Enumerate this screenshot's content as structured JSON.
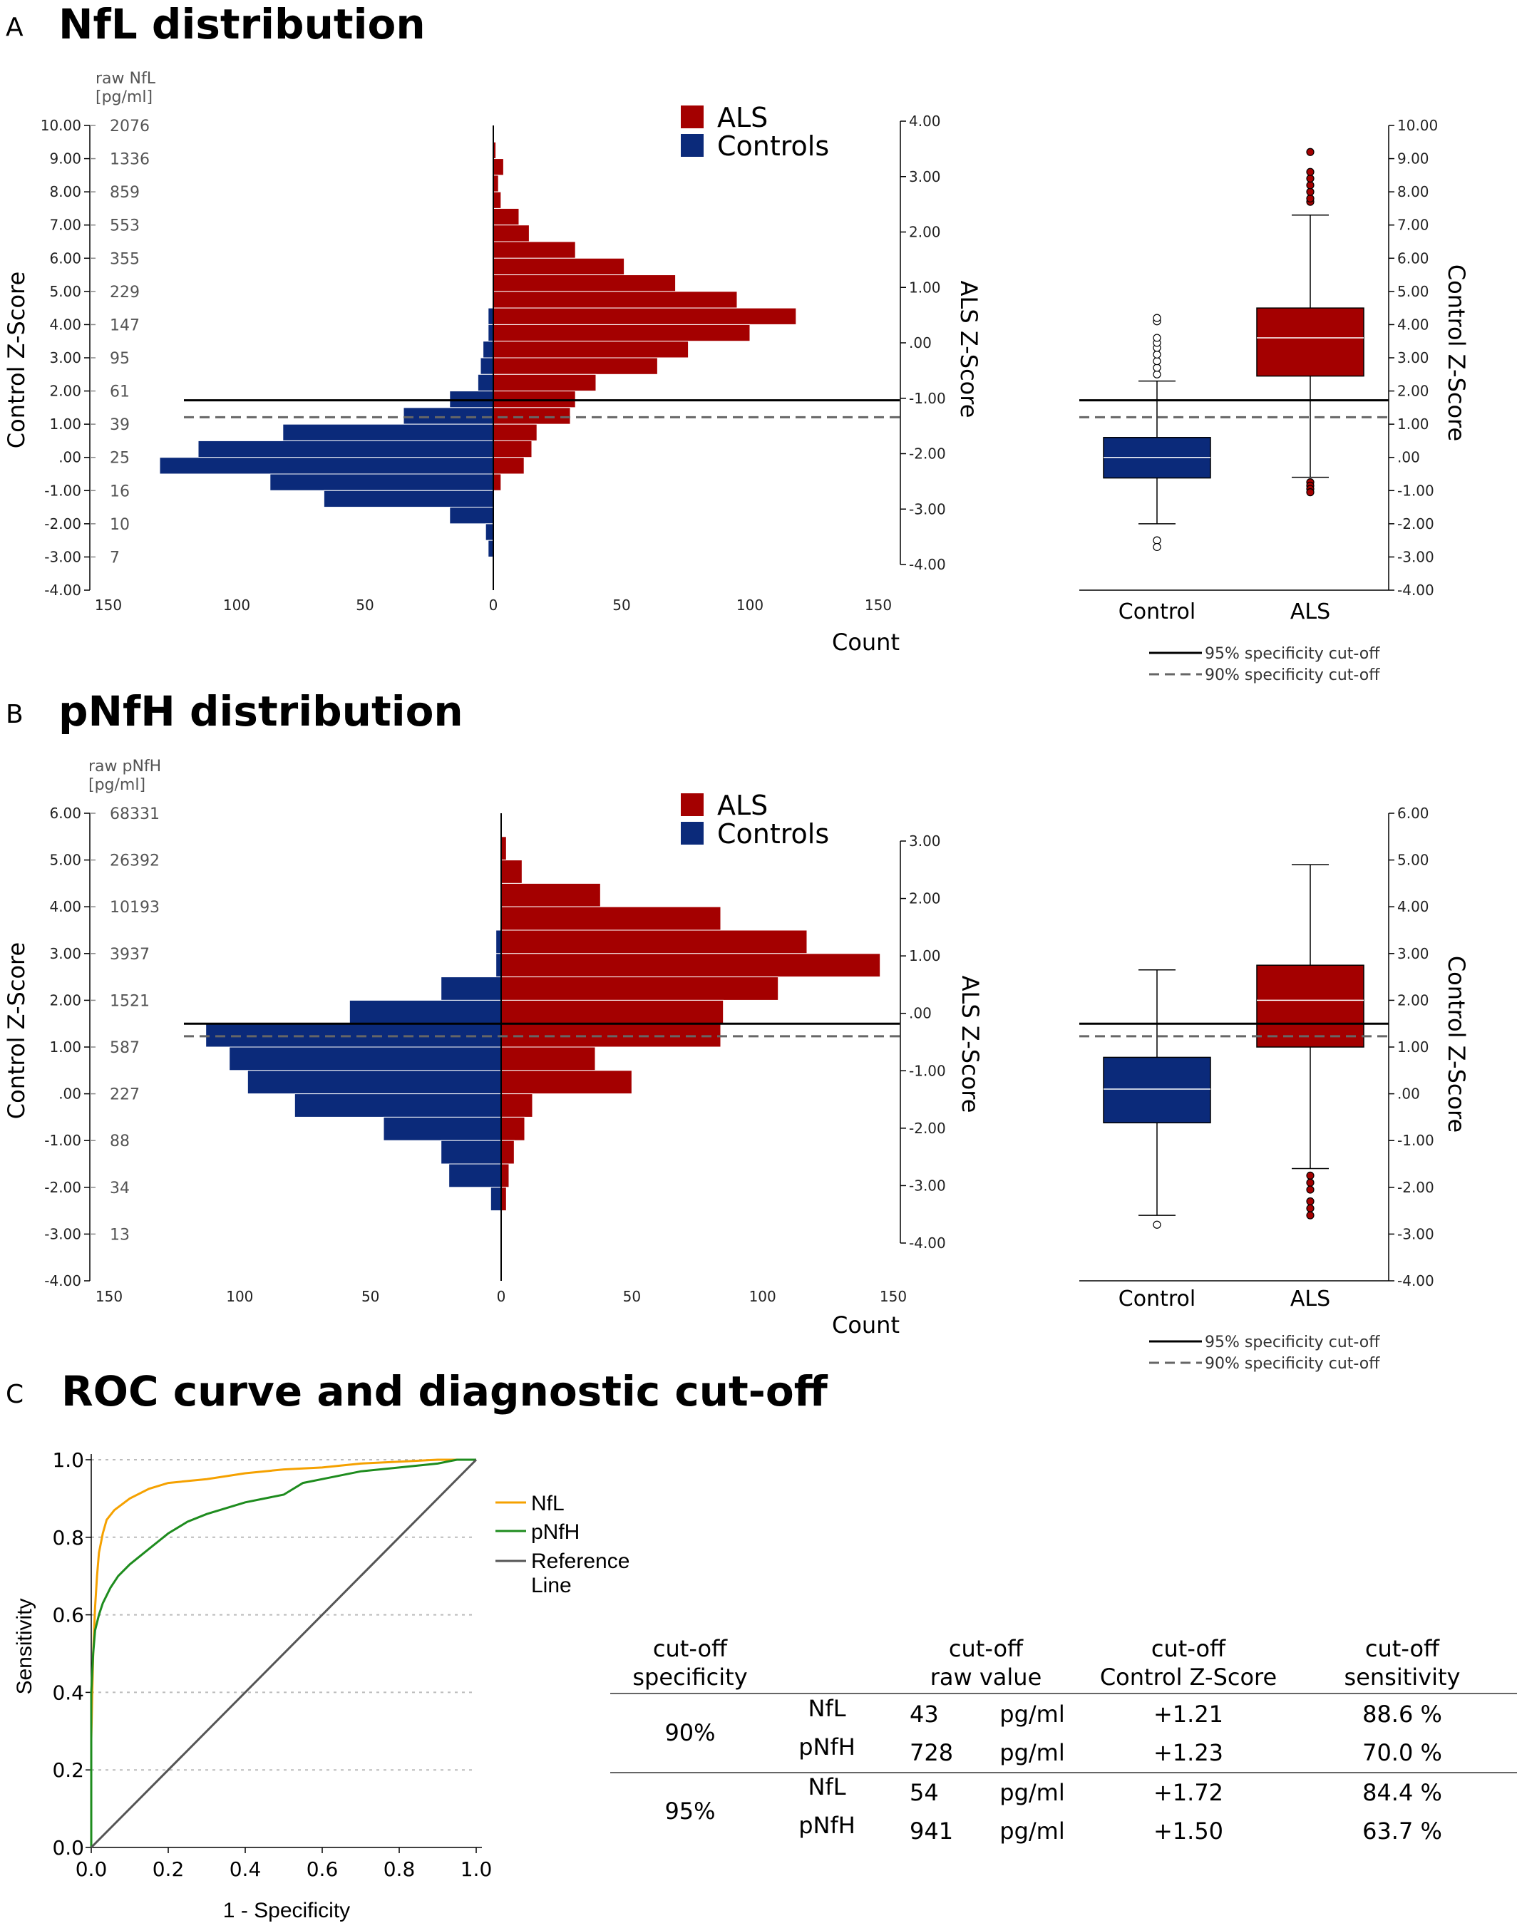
{
  "panels": {
    "a_letter": "A",
    "a_title": "NfL distribution",
    "b_letter": "B",
    "b_title": "pNfH distribution",
    "c_letter": "C",
    "c_title": "ROC curve and diagnostic cut-off"
  },
  "colors": {
    "als": "#a40000",
    "controls": "#0b2a7a",
    "nfl_roc": "#f5a100",
    "pnfh_roc": "#1e8c1e",
    "reference": "#555555"
  },
  "chart_data": [
    {
      "id": "A_histogram",
      "type": "bar",
      "orientation": "horizontal-mirrored",
      "raw_axis_title": [
        "raw NfL",
        "[pg/ml]"
      ],
      "ylabel_left": "Control Z-Score",
      "ylabel_right": "ALS Z-Score",
      "xlabel": "Count",
      "legend": [
        "ALS",
        "Controls"
      ],
      "ylim": [
        -4,
        10
      ],
      "y_ticks": [
        "10.00",
        "9.00",
        "8.00",
        "7.00",
        "6.00",
        "5.00",
        "4.00",
        "3.00",
        "2.00",
        "1.00",
        ".00",
        "-1.00",
        "-2.00",
        "-3.00",
        "-4.00"
      ],
      "raw_ticks": [
        "2076",
        "1336",
        "859",
        "553",
        "355",
        "229",
        "147",
        "95",
        "61",
        "39",
        "25",
        "16",
        "10",
        "7"
      ],
      "right_ticks": [
        "4.00",
        "3.00",
        "2.00",
        "1.00",
        ".00",
        "-1.00",
        "-2.00",
        "-3.00",
        "-4.00"
      ],
      "x_ticks": [
        "150",
        "100",
        "50",
        "0",
        "50",
        "100",
        "150"
      ],
      "xlim": 150,
      "bin_width": 0.5,
      "bins_y_center": [
        9.25,
        8.75,
        8.25,
        7.75,
        7.25,
        6.75,
        6.25,
        5.75,
        5.25,
        4.75,
        4.25,
        3.75,
        3.25,
        2.75,
        2.25,
        1.75,
        1.25,
        0.75,
        0.25,
        -0.25,
        -0.75,
        -1.25,
        -1.75,
        -2.25,
        -2.75
      ],
      "series": [
        {
          "name": "ALS",
          "values": [
            1,
            4,
            2,
            3,
            10,
            14,
            32,
            51,
            71,
            95,
            118,
            100,
            76,
            64,
            40,
            32,
            30,
            17,
            15,
            12,
            3,
            0,
            0,
            0,
            0
          ]
        },
        {
          "name": "Controls",
          "values": [
            0,
            0,
            0,
            0,
            0,
            0,
            0,
            0,
            0,
            0,
            2,
            2,
            4,
            5,
            6,
            17,
            35,
            82,
            115,
            130,
            87,
            66,
            17,
            3,
            2
          ]
        }
      ],
      "cutoff_95_z": 1.72,
      "cutoff_90_z": 1.21
    },
    {
      "id": "A_boxplot",
      "type": "box",
      "categories": [
        "Control",
        "ALS"
      ],
      "ylabel": "Control Z-Score",
      "ylim": [
        -4,
        10
      ],
      "y_ticks": [
        "10.00",
        "9.00",
        "8.00",
        "7.00",
        "6.00",
        "5.00",
        "4.00",
        "3.00",
        "2.00",
        "1.00",
        ".00",
        "-1.00",
        "-2.00",
        "-3.00",
        "-4.00"
      ],
      "boxes": [
        {
          "category": "Control",
          "whisker_low": -2.0,
          "q1": -0.62,
          "median": 0.0,
          "q3": 0.6,
          "whisker_high": 2.3,
          "outliers": [
            2.5,
            2.7,
            2.9,
            3.1,
            3.3,
            3.45,
            3.6,
            4.1,
            4.2,
            -2.5,
            -2.7
          ]
        },
        {
          "category": "ALS",
          "whisker_low": -0.6,
          "q1": 2.45,
          "median": 3.6,
          "q3": 4.5,
          "whisker_high": 7.3,
          "outliers": [
            7.7,
            7.8,
            8.0,
            8.2,
            8.4,
            8.6,
            9.2,
            -0.75,
            -0.85,
            -0.95,
            -1.05
          ]
        }
      ],
      "cutoff_95_z": 1.72,
      "cutoff_90_z": 1.21,
      "cutoff_legend": [
        "95% specificity cut-off",
        "90% specificity cut-off"
      ]
    },
    {
      "id": "B_histogram",
      "type": "bar",
      "orientation": "horizontal-mirrored",
      "raw_axis_title": [
        "raw pNfH",
        "[pg/ml]"
      ],
      "ylabel_left": "Control Z-Score",
      "ylabel_right": "ALS Z-Score",
      "xlabel": "Count",
      "legend": [
        "ALS",
        "Controls"
      ],
      "ylim": [
        -4,
        6
      ],
      "y_ticks": [
        "6.00",
        "5.00",
        "4.00",
        "3.00",
        "2.00",
        "1.00",
        ".00",
        "-1.00",
        "-2.00",
        "-3.00",
        "-4.00"
      ],
      "raw_ticks": [
        "68331",
        "26392",
        "10193",
        "3937",
        "1521",
        "587",
        "227",
        "88",
        "34",
        "13"
      ],
      "right_ticks": [
        "3.00",
        "2.00",
        "1.00",
        ".00",
        "-1.00",
        "-2.00",
        "-3.00",
        "-4.00"
      ],
      "x_ticks": [
        "150",
        "100",
        "50",
        "0",
        "50",
        "100",
        "150"
      ],
      "xlim": 150,
      "bin_width": 0.5,
      "bins_y_center": [
        5.25,
        4.75,
        4.25,
        3.75,
        3.25,
        2.75,
        2.25,
        1.75,
        1.25,
        0.75,
        0.25,
        -0.25,
        -0.75,
        -1.25,
        -1.75,
        -2.25,
        -2.75,
        -3.25
      ],
      "series": [
        {
          "name": "ALS",
          "values": [
            2,
            8,
            38,
            84,
            117,
            145,
            106,
            85,
            84,
            36,
            50,
            12,
            9,
            5,
            3,
            2,
            0,
            0
          ]
        },
        {
          "name": "Controls",
          "values": [
            0,
            0,
            0,
            0,
            2,
            2,
            23,
            58,
            113,
            104,
            97,
            79,
            45,
            23,
            20,
            4,
            0,
            0
          ]
        }
      ],
      "cutoff_95_z": 1.5,
      "cutoff_90_z": 1.23
    },
    {
      "id": "B_boxplot",
      "type": "box",
      "categories": [
        "Control",
        "ALS"
      ],
      "ylabel": "Control Z-Score",
      "ylim": [
        -4,
        6
      ],
      "y_ticks": [
        "6.00",
        "5.00",
        "4.00",
        "3.00",
        "2.00",
        "1.00",
        ".00",
        "-1.00",
        "-2.00",
        "-3.00",
        "-4.00"
      ],
      "boxes": [
        {
          "category": "Control",
          "whisker_low": -2.6,
          "q1": -0.62,
          "median": 0.1,
          "q3": 0.78,
          "whisker_high": 2.65,
          "outliers": [
            -2.8
          ]
        },
        {
          "category": "ALS",
          "whisker_low": -1.6,
          "q1": 1.0,
          "median": 2.0,
          "q3": 2.75,
          "whisker_high": 4.9,
          "outliers": [
            -1.75,
            -1.9,
            -2.05,
            -2.3,
            -2.45,
            -2.6
          ]
        }
      ],
      "cutoff_95_z": 1.5,
      "cutoff_90_z": 1.23,
      "cutoff_legend": [
        "95% specificity cut-off",
        "90% specificity cut-off"
      ]
    },
    {
      "id": "C_roc",
      "type": "line",
      "xlabel": "1 - Specificity",
      "ylabel": "Sensitivity",
      "xlim": [
        0,
        1
      ],
      "ylim": [
        0,
        1
      ],
      "x_ticks": [
        "0.0",
        "0.2",
        "0.4",
        "0.6",
        "0.8",
        "1.0"
      ],
      "y_ticks": [
        "0.0",
        "0.2",
        "0.4",
        "0.6",
        "0.8",
        "1.0"
      ],
      "series": [
        {
          "name": "NfL",
          "x": [
            0,
            0,
            0.005,
            0.01,
            0.015,
            0.02,
            0.03,
            0.04,
            0.06,
            0.08,
            0.1,
            0.15,
            0.2,
            0.3,
            0.4,
            0.5,
            0.6,
            0.7,
            0.8,
            0.9,
            1.0
          ],
          "y": [
            0,
            0.28,
            0.5,
            0.62,
            0.7,
            0.76,
            0.81,
            0.845,
            0.87,
            0.885,
            0.9,
            0.925,
            0.94,
            0.95,
            0.965,
            0.975,
            0.98,
            0.99,
            0.995,
            1.0,
            1.0
          ]
        },
        {
          "name": "pNfH",
          "x": [
            0,
            0,
            0.005,
            0.01,
            0.02,
            0.03,
            0.05,
            0.07,
            0.1,
            0.15,
            0.2,
            0.25,
            0.3,
            0.4,
            0.5,
            0.55,
            0.6,
            0.7,
            0.8,
            0.9,
            0.95,
            1.0
          ],
          "y": [
            0,
            0.4,
            0.5,
            0.56,
            0.6,
            0.63,
            0.67,
            0.7,
            0.73,
            0.77,
            0.81,
            0.84,
            0.86,
            0.89,
            0.91,
            0.94,
            0.95,
            0.97,
            0.98,
            0.99,
            1.0,
            1.0
          ]
        },
        {
          "name": "Reference Line",
          "x": [
            0,
            1
          ],
          "y": [
            0,
            1
          ]
        }
      ],
      "legend": [
        "NfL",
        "pNfH",
        "Reference",
        "Line"
      ]
    }
  ],
  "cutoff_table": {
    "headers": [
      [
        "cut-off",
        "specificity"
      ],
      [
        "cut-off",
        "raw value"
      ],
      [
        "cut-off",
        "Control Z-Score"
      ],
      [
        "cut-off",
        "sensitivity"
      ]
    ],
    "groups": [
      {
        "specificity": "90%",
        "rows": [
          {
            "marker": "NfL",
            "raw": "43",
            "unit": "pg/ml",
            "z": "+1.21",
            "sensitivity": "88.6 %"
          },
          {
            "marker": "pNfH",
            "raw": "728",
            "unit": "pg/ml",
            "z": "+1.23",
            "sensitivity": "70.0 %"
          }
        ]
      },
      {
        "specificity": "95%",
        "rows": [
          {
            "marker": "NfL",
            "raw": "54",
            "unit": "pg/ml",
            "z": "+1.72",
            "sensitivity": "84.4 %"
          },
          {
            "marker": "pNfH",
            "raw": "941",
            "unit": "pg/ml",
            "z": "+1.50",
            "sensitivity": "63.7 %"
          }
        ]
      }
    ]
  }
}
